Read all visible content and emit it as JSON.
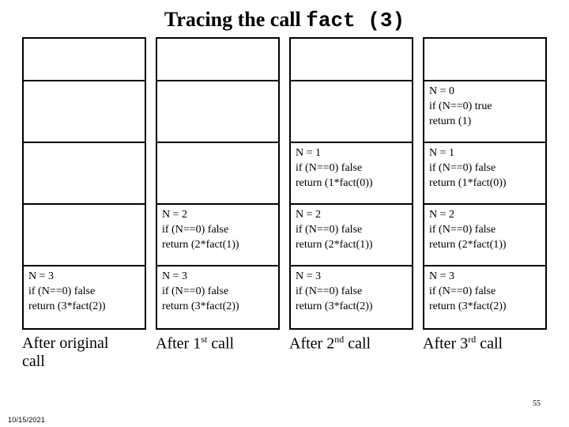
{
  "title_prefix": "Tracing the call ",
  "title_mono": "fact (3)",
  "columns": [
    {
      "cells": [
        {
          "l1": "",
          "l2": "",
          "l3": "",
          "short": true
        },
        {
          "l1": "",
          "l2": "",
          "l3": ""
        },
        {
          "l1": "",
          "l2": "",
          "l3": ""
        },
        {
          "l1": "",
          "l2": "",
          "l3": ""
        },
        {
          "l1": "N = 3",
          "l2": "if (N==0) false",
          "l3": "return (3*fact(2))"
        }
      ],
      "caption_pre": "After original",
      "caption_ord": "",
      "caption_post": "call",
      "two_line": true
    },
    {
      "cells": [
        {
          "l1": "",
          "l2": "",
          "l3": "",
          "short": true
        },
        {
          "l1": "",
          "l2": "",
          "l3": ""
        },
        {
          "l1": "",
          "l2": "",
          "l3": ""
        },
        {
          "l1": "N = 2",
          "l2": "if (N==0) false",
          "l3": "return (2*fact(1))"
        },
        {
          "l1": "N = 3",
          "l2": "if (N==0) false",
          "l3": "return (3*fact(2))"
        }
      ],
      "caption_pre": "After 1",
      "caption_ord": "st",
      "caption_post": " call",
      "two_line": false
    },
    {
      "cells": [
        {
          "l1": "",
          "l2": "",
          "l3": "",
          "short": true
        },
        {
          "l1": "",
          "l2": "",
          "l3": ""
        },
        {
          "l1": "N = 1",
          "l2": "if (N==0) false",
          "l3": "return (1*fact(0))"
        },
        {
          "l1": "N = 2",
          "l2": "if (N==0) false",
          "l3": "return (2*fact(1))"
        },
        {
          "l1": "N = 3",
          "l2": "if (N==0) false",
          "l3": "return (3*fact(2))"
        }
      ],
      "caption_pre": "After 2",
      "caption_ord": "nd",
      "caption_post": " call",
      "two_line": false
    },
    {
      "cells": [
        {
          "l1": "",
          "l2": "",
          "l3": "",
          "short": true
        },
        {
          "l1": "N = 0",
          "l2": "if (N==0) true",
          "l3": "return (1)"
        },
        {
          "l1": "N = 1",
          "l2": "if (N==0) false",
          "l3": "return (1*fact(0))"
        },
        {
          "l1": "N = 2",
          "l2": "if (N==0) false",
          "l3": "return (2*fact(1))"
        },
        {
          "l1": "N = 3",
          "l2": "if (N==0) false",
          "l3": "return (3*fact(2))"
        }
      ],
      "caption_pre": "After 3",
      "caption_ord": "rd",
      "caption_post": " call",
      "two_line": false
    }
  ],
  "slide_number": "55",
  "date": "10/15/2021",
  "colors": {
    "text": "#000000",
    "bg": "#ffffff",
    "border": "#000000"
  }
}
